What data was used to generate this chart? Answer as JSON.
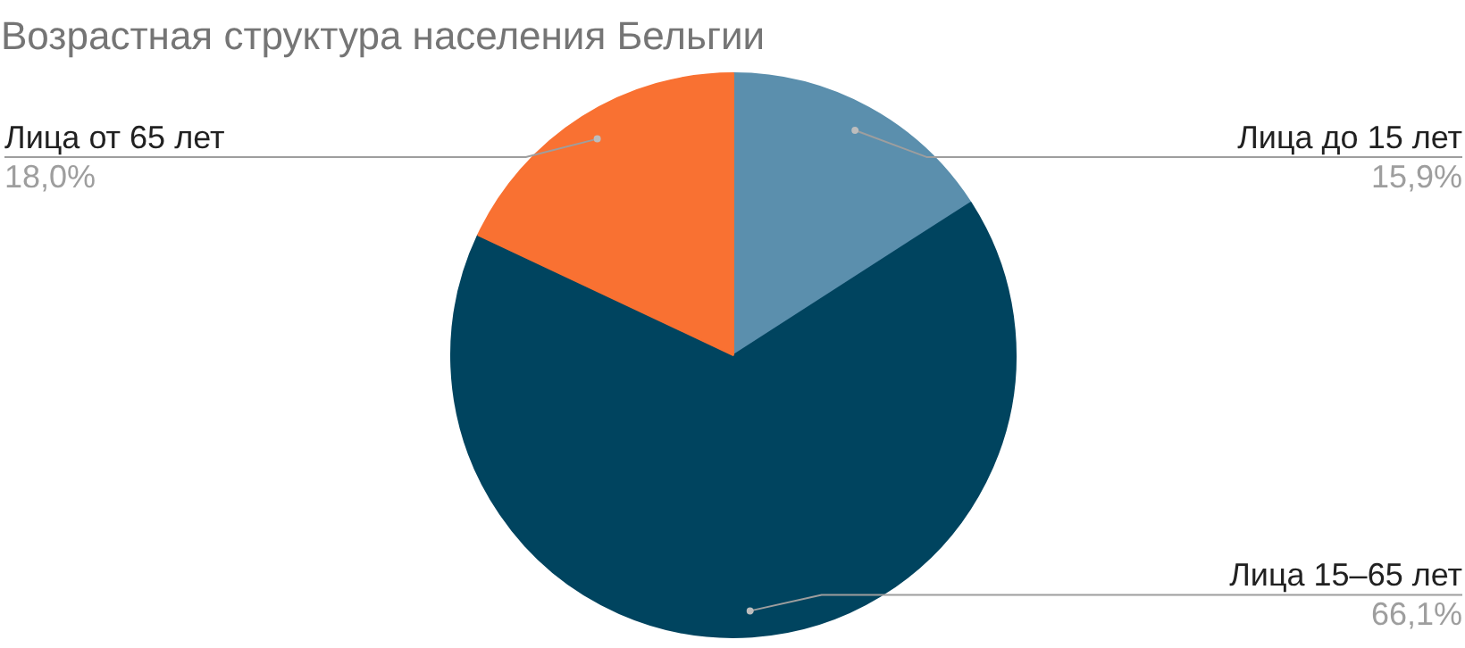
{
  "chart_data": {
    "type": "pie",
    "title": "Возрастная структура населения Бельгии",
    "categories": [
      "Лица до 15 лет",
      "Лица 15–65 лет",
      "Лица от 65 лет"
    ],
    "values": [
      15.9,
      66.1,
      18.0
    ],
    "value_labels": [
      "15,9%",
      "66,1%",
      "18,0%"
    ],
    "colors": [
      "#5b8fad",
      "#00445f",
      "#f97132"
    ]
  }
}
